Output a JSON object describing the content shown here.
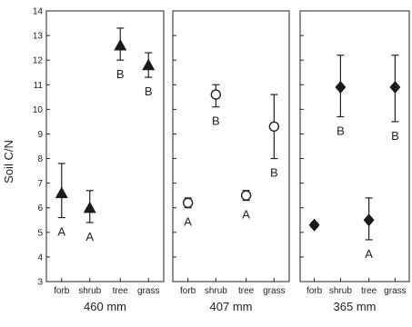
{
  "chart_data": {
    "type": "scatter",
    "ylabel": "Soil C/N",
    "ylim": [
      3,
      14
    ],
    "yticks": [
      3,
      4,
      5,
      6,
      7,
      8,
      9,
      10,
      11,
      12,
      13,
      14
    ],
    "categories": [
      "forb",
      "shrub",
      "tree",
      "grass"
    ],
    "grid": false,
    "panels": [
      {
        "xlabel": "460 mm",
        "marker": "triangle",
        "points": [
          {
            "category": "forb",
            "value": 6.6,
            "err_low": 5.6,
            "err_high": 7.8,
            "label": "A"
          },
          {
            "category": "shrub",
            "value": 6.0,
            "err_low": 5.4,
            "err_high": 6.7,
            "label": "A"
          },
          {
            "category": "tree",
            "value": 12.6,
            "err_low": 12.0,
            "err_high": 13.3,
            "label": "B"
          },
          {
            "category": "grass",
            "value": 11.8,
            "err_low": 11.3,
            "err_high": 12.3,
            "label": "B"
          }
        ]
      },
      {
        "xlabel": "407 mm",
        "marker": "circle-open",
        "points": [
          {
            "category": "forb",
            "value": 6.2,
            "err_low": 6.0,
            "err_high": 6.4,
            "label": "A"
          },
          {
            "category": "shrub",
            "value": 10.6,
            "err_low": 10.1,
            "err_high": 11.0,
            "label": "B"
          },
          {
            "category": "tree",
            "value": 6.5,
            "err_low": 6.3,
            "err_high": 6.7,
            "label": "A"
          },
          {
            "category": "grass",
            "value": 9.3,
            "err_low": 8.0,
            "err_high": 10.6,
            "label": "B"
          }
        ]
      },
      {
        "xlabel": "365 mm",
        "marker": "diamond",
        "points": [
          {
            "category": "forb",
            "value": 5.3,
            "err_low": 5.2,
            "err_high": 5.4,
            "label": ""
          },
          {
            "category": "shrub",
            "value": 10.9,
            "err_low": 9.7,
            "err_high": 12.2,
            "label": "B"
          },
          {
            "category": "tree",
            "value": 5.5,
            "err_low": 4.7,
            "err_high": 6.4,
            "label": "A"
          },
          {
            "category": "grass",
            "value": 10.9,
            "err_low": 9.5,
            "err_high": 12.2,
            "label": "B"
          }
        ]
      }
    ]
  }
}
